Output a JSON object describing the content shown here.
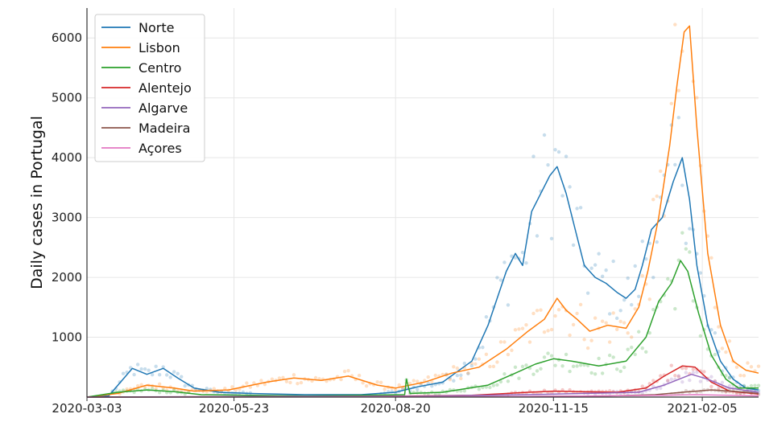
{
  "chart_data": {
    "type": "line",
    "title": "",
    "xlabel": "",
    "ylabel": "Daily cases in Portugal",
    "x_ticks": [
      "2020-03-03",
      "2020-05-23",
      "2020-08-20",
      "2020-11-15",
      "2021-02-05"
    ],
    "y_ticks": [
      1000,
      2000,
      3000,
      4000,
      5000,
      6000
    ],
    "xlim": [
      "2020-03-03",
      "2021-03-08"
    ],
    "ylim": [
      0,
      6500
    ],
    "grid": true,
    "legend_position": "top-left",
    "scatter_points_shown": true,
    "series": [
      {
        "name": "Norte",
        "color": "#1f77b4",
        "x": [
          "2020-03-03",
          "2020-03-15",
          "2020-03-28",
          "2020-04-05",
          "2020-04-14",
          "2020-04-22",
          "2020-05-01",
          "2020-05-15",
          "2020-06-01",
          "2020-07-01",
          "2020-08-01",
          "2020-08-20",
          "2020-09-01",
          "2020-09-15",
          "2020-10-01",
          "2020-10-10",
          "2020-10-20",
          "2020-10-25",
          "2020-10-29",
          "2020-11-03",
          "2020-11-08",
          "2020-11-13",
          "2020-11-17",
          "2020-11-22",
          "2020-11-27",
          "2020-12-02",
          "2020-12-08",
          "2020-12-14",
          "2020-12-20",
          "2020-12-25",
          "2020-12-30",
          "2021-01-03",
          "2021-01-08",
          "2021-01-14",
          "2021-01-20",
          "2021-01-25",
          "2021-01-29",
          "2021-02-02",
          "2021-02-08",
          "2021-02-15",
          "2021-02-22",
          "2021-03-01",
          "2021-03-08"
        ],
        "values": [
          0,
          20,
          480,
          380,
          480,
          320,
          150,
          80,
          60,
          40,
          40,
          80,
          170,
          250,
          600,
          1200,
          2100,
          2400,
          2200,
          3100,
          3400,
          3700,
          3850,
          3400,
          2800,
          2200,
          2000,
          1900,
          1750,
          1650,
          1800,
          2200,
          2800,
          3000,
          3600,
          4000,
          3300,
          2200,
          1200,
          600,
          300,
          150,
          120
        ]
      },
      {
        "name": "Lisbon",
        "color": "#ff7f0e",
        "x": [
          "2020-03-03",
          "2020-03-20",
          "2020-04-05",
          "2020-04-20",
          "2020-05-01",
          "2020-05-20",
          "2020-06-10",
          "2020-06-25",
          "2020-07-10",
          "2020-07-25",
          "2020-08-10",
          "2020-08-20",
          "2020-09-05",
          "2020-09-20",
          "2020-10-05",
          "2020-10-20",
          "2020-11-01",
          "2020-11-10",
          "2020-11-17",
          "2020-11-22",
          "2020-11-28",
          "2020-12-05",
          "2020-12-15",
          "2020-12-25",
          "2021-01-01",
          "2021-01-06",
          "2021-01-12",
          "2021-01-18",
          "2021-01-22",
          "2021-01-26",
          "2021-01-29",
          "2021-02-02",
          "2021-02-08",
          "2021-02-15",
          "2021-02-22",
          "2021-03-01",
          "2021-03-08"
        ],
        "values": [
          0,
          60,
          200,
          150,
          100,
          120,
          250,
          320,
          280,
          350,
          200,
          150,
          250,
          400,
          500,
          800,
          1100,
          1300,
          1650,
          1450,
          1300,
          1100,
          1200,
          1150,
          1500,
          2100,
          3000,
          4200,
          5200,
          6100,
          6200,
          4500,
          2400,
          1200,
          600,
          450,
          400
        ]
      },
      {
        "name": "Centro",
        "color": "#2ca02c",
        "x": [
          "2020-03-03",
          "2020-03-20",
          "2020-04-05",
          "2020-04-20",
          "2020-05-05",
          "2020-06-01",
          "2020-07-01",
          "2020-08-01",
          "2020-08-25",
          "2020-08-26",
          "2020-08-28",
          "2020-09-15",
          "2020-10-10",
          "2020-10-25",
          "2020-11-05",
          "2020-11-15",
          "2020-11-25",
          "2020-12-10",
          "2020-12-25",
          "2021-01-05",
          "2021-01-12",
          "2021-01-19",
          "2021-01-24",
          "2021-01-28",
          "2021-02-03",
          "2021-02-10",
          "2021-02-18",
          "2021-02-25",
          "2021-03-08"
        ],
        "values": [
          0,
          80,
          120,
          90,
          40,
          30,
          20,
          30,
          40,
          300,
          60,
          80,
          200,
          400,
          550,
          640,
          600,
          520,
          600,
          1000,
          1600,
          1900,
          2280,
          2100,
          1400,
          700,
          300,
          150,
          150
        ]
      },
      {
        "name": "Alentejo",
        "color": "#d62728",
        "x": [
          "2020-03-03",
          "2020-05-01",
          "2020-08-01",
          "2020-10-01",
          "2020-11-01",
          "2020-11-15",
          "2020-12-01",
          "2020-12-20",
          "2021-01-05",
          "2021-01-15",
          "2021-01-25",
          "2021-02-01",
          "2021-02-10",
          "2021-02-20",
          "2021-03-08"
        ],
        "values": [
          0,
          5,
          10,
          30,
          80,
          100,
          90,
          80,
          150,
          350,
          520,
          500,
          250,
          100,
          50
        ]
      },
      {
        "name": "Algarve",
        "color": "#9467bd",
        "x": [
          "2020-03-03",
          "2020-06-01",
          "2020-09-01",
          "2020-11-01",
          "2020-12-01",
          "2021-01-01",
          "2021-01-15",
          "2021-01-30",
          "2021-02-08",
          "2021-02-20",
          "2021-03-08"
        ],
        "values": [
          0,
          10,
          15,
          40,
          60,
          80,
          200,
          380,
          300,
          150,
          80
        ]
      },
      {
        "name": "Madeira",
        "color": "#8c564b",
        "x": [
          "2020-03-03",
          "2020-06-01",
          "2020-09-01",
          "2020-11-01",
          "2020-12-15",
          "2021-01-10",
          "2021-01-25",
          "2021-02-10",
          "2021-02-25",
          "2021-03-08"
        ],
        "values": [
          0,
          3,
          5,
          10,
          20,
          40,
          80,
          120,
          90,
          60
        ]
      },
      {
        "name": "Açores",
        "color": "#e377c2",
        "x": [
          "2020-03-03",
          "2020-06-01",
          "2020-09-01",
          "2020-11-01",
          "2020-12-15",
          "2021-01-15",
          "2021-02-01",
          "2021-02-20",
          "2021-03-08"
        ],
        "values": [
          0,
          2,
          5,
          10,
          20,
          30,
          40,
          30,
          20
        ]
      }
    ]
  }
}
